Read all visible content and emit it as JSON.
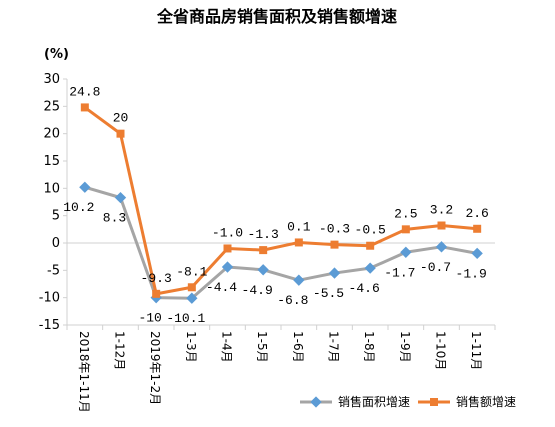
{
  "chart_data": {
    "type": "line",
    "title": "全省商品房销售面积及销售额增速",
    "unit_label": "(%)",
    "categories": [
      "2018年1-11月",
      "1-12月",
      "2019年1-2月",
      "1-3月",
      "1-4月",
      "1-5月",
      "1-6月",
      "1-7月",
      "1-8月",
      "1-9月",
      "1-10月",
      "1-11月"
    ],
    "ylim": [
      -15,
      30
    ],
    "yticks": [
      -15,
      -10,
      -5,
      0,
      5,
      10,
      15,
      20,
      25,
      30
    ],
    "ytick_labels": [
      "-15",
      "-10",
      "-5",
      "0",
      "5",
      "10",
      "15",
      "20",
      "25",
      "30"
    ],
    "grid": false,
    "legend_position": "bottom-right",
    "series": [
      {
        "name": "销售面积增速",
        "color": "#a5a5a5",
        "marker": "diamond",
        "values": [
          10.2,
          8.3,
          -10,
          -10.1,
          -4.4,
          -4.9,
          -6.8,
          -5.5,
          -4.6,
          -1.7,
          -0.7,
          -1.9
        ],
        "labels": [
          "10.2",
          "8.3",
          "-10",
          "-10.1",
          "-4.4",
          "-4.9",
          "-6.8",
          "-5.5",
          "-4.6",
          "-1.7",
          "-0.7",
          "-1.9"
        ]
      },
      {
        "name": "销售额增速",
        "color": "#ed7d31",
        "marker": "square",
        "values": [
          24.8,
          20,
          -9.3,
          -8.1,
          -1.0,
          -1.3,
          0.1,
          -0.3,
          -0.5,
          2.5,
          3.2,
          2.6
        ],
        "labels": [
          "24.8",
          "20",
          "-9.3",
          "-8.1",
          "-1.0",
          "-1.3",
          "0.1",
          "-0.3",
          "-0.5",
          "2.5",
          "3.2",
          "2.6"
        ]
      }
    ]
  }
}
